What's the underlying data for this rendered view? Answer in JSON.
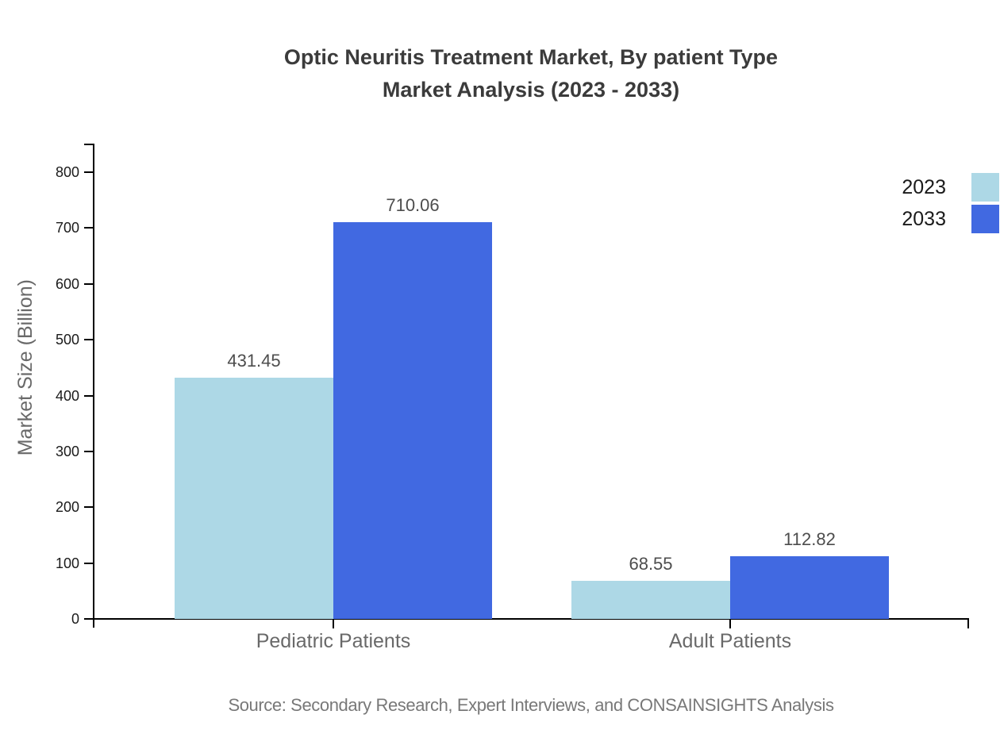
{
  "title": {
    "line1": "Optic Neuritis Treatment Market, By patient Type",
    "line2": "Market Analysis (2023 - 2033)"
  },
  "chart_data": {
    "type": "bar",
    "categories": [
      "Pediatric Patients",
      "Adult Patients"
    ],
    "series": [
      {
        "name": "2023",
        "color": "#ADD8E6",
        "values": [
          431.45,
          68.55
        ]
      },
      {
        "name": "2033",
        "color": "#4169E1",
        "values": [
          710.06,
          112.82
        ]
      }
    ],
    "value_labels": [
      "431.45",
      "710.06",
      "68.55",
      "112.82"
    ],
    "title": "Optic Neuritis Treatment Market, By patient Type Market Analysis (2023 - 2033)",
    "xlabel": "",
    "ylabel": "Market Size (Billion)",
    "ylim": [
      0,
      850
    ],
    "yticks": [
      0,
      100,
      200,
      300,
      400,
      500,
      600,
      700,
      800
    ],
    "grid": false,
    "legend_position": "right",
    "bar_orientation": "vertical"
  },
  "source": "Source: Secondary Research, Expert Interviews, and CONSAINSIGHTS Analysis",
  "colors": {
    "axis": "#000000",
    "title_text": "#3b3b3b",
    "tick_label": "#1a1a1a",
    "category_label": "#696969",
    "value_label": "#4d4d4d",
    "axis_title": "#696969",
    "source_text": "#787878",
    "series_2023": "#ADD8E6",
    "series_2033": "#4169E1",
    "background": "#ffffff"
  }
}
